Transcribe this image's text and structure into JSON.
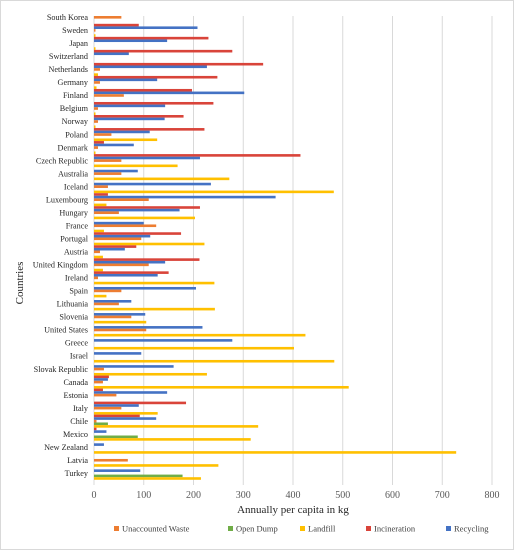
{
  "chart_data": {
    "type": "bar",
    "orientation": "horizontal",
    "title": "",
    "xlabel": "Annually per capita in kg",
    "ylabel": "Countries",
    "xlim": [
      0,
      800
    ],
    "xticks": [
      0,
      100,
      200,
      300,
      400,
      500,
      600,
      700,
      800
    ],
    "grid": "vertical",
    "legend_position": "bottom",
    "categories": [
      "South Korea",
      "Sweden",
      "Japan",
      "Switzerland",
      "Netherlands",
      "Germany",
      "Finland",
      "Belgium",
      "Norway",
      "Poland",
      "Denmark",
      "Czech Republic",
      "Australia",
      "Iceland",
      "Luxembourg",
      "Hungary",
      "France",
      "Portugal",
      "Austria",
      "United Kingdom",
      "Ireland",
      "Spain",
      "Lithuania",
      "Slovenia",
      "United States",
      "Greece",
      "Israel",
      "Slovak Republic",
      "Canada",
      "Estonia",
      "Italy",
      "Chile",
      "Mexico",
      "New Zealand",
      "Latvia",
      "Turkey"
    ],
    "series": [
      {
        "name": "Unaccounted Waste",
        "color": "#ED7D31",
        "values": [
          55,
          3,
          0,
          0,
          12,
          12,
          60,
          8,
          8,
          35,
          8,
          55,
          55,
          28,
          110,
          50,
          125,
          95,
          12,
          110,
          8,
          55,
          50,
          75,
          105,
          0,
          0,
          20,
          18,
          45,
          55,
          5,
          0,
          0,
          68,
          0
        ]
      },
      {
        "name": "Open Dump",
        "color": "#70AD47",
        "values": [
          0,
          0,
          0,
          0,
          0,
          0,
          0,
          0,
          0,
          0,
          0,
          0,
          0,
          0,
          0,
          0,
          0,
          0,
          0,
          0,
          0,
          0,
          0,
          0,
          0,
          0,
          0,
          0,
          0,
          0,
          0,
          28,
          88,
          0,
          0,
          178
        ]
      },
      {
        "name": "Landfill",
        "color": "#FFC000",
        "values": [
          0,
          3,
          3,
          0,
          8,
          5,
          0,
          3,
          3,
          127,
          3,
          168,
          272,
          482,
          25,
          203,
          20,
          222,
          18,
          18,
          242,
          25,
          243,
          105,
          425,
          402,
          483,
          227,
          512,
          0,
          128,
          330,
          315,
          728,
          250,
          215
        ]
      },
      {
        "name": "Incineration",
        "color": "#D9443A",
        "values": [
          90,
          230,
          278,
          340,
          248,
          197,
          240,
          180,
          222,
          20,
          415,
          0,
          0,
          28,
          213,
          0,
          175,
          85,
          212,
          150,
          0,
          0,
          0,
          0,
          0,
          0,
          0,
          30,
          18,
          185,
          92,
          5,
          0,
          0,
          0,
          0
        ]
      },
      {
        "name": "Recycling",
        "color": "#4472C4",
        "values": [
          208,
          147,
          70,
          227,
          127,
          302,
          143,
          142,
          112,
          80,
          213,
          88,
          235,
          365,
          172,
          100,
          113,
          62,
          143,
          128,
          205,
          75,
          103,
          218,
          278,
          95,
          160,
          28,
          147,
          90,
          125,
          25,
          20,
          0,
          93,
          0
        ]
      }
    ]
  }
}
